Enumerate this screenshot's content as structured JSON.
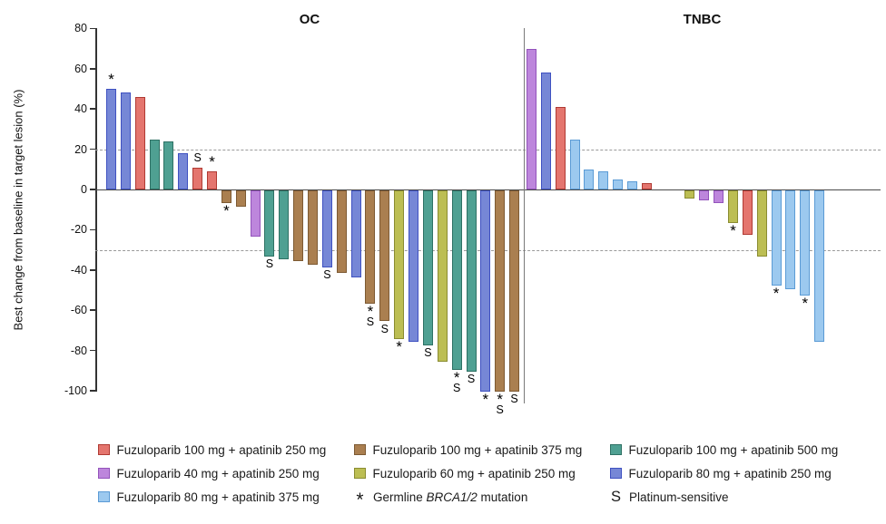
{
  "chart_data": {
    "type": "bar",
    "subtype": "waterfall",
    "ylabel": "Best change from baseline in target lesion (%)",
    "ylim": [
      -100,
      80
    ],
    "yticks": [
      80,
      60,
      40,
      20,
      0,
      -20,
      -40,
      -60,
      -80,
      -100
    ],
    "reference_lines": [
      20,
      -30
    ],
    "grid": "off",
    "marker_meanings": {
      "*": "Germline BRCA1/2 mutation",
      "S": "Platinum-sensitive"
    },
    "colors": {
      "red": {
        "fill": "#e4756e",
        "stroke": "#b03a33"
      },
      "brown": {
        "fill": "#aa7f50",
        "stroke": "#7d5a33"
      },
      "teal": {
        "fill": "#4fa092",
        "stroke": "#2e7164"
      },
      "purple": {
        "fill": "#bd86dc",
        "stroke": "#9353bb"
      },
      "olive": {
        "fill": "#bcbe53",
        "stroke": "#8a8c31"
      },
      "blue": {
        "fill": "#7687d6",
        "stroke": "#3f51c1"
      },
      "lightblue": {
        "fill": "#9cc9ef",
        "stroke": "#5b9bd5"
      }
    },
    "groups": [
      {
        "title": "OC",
        "bars": [
          {
            "v": 50,
            "c": "blue",
            "m": "*"
          },
          {
            "v": 48,
            "c": "blue"
          },
          {
            "v": 46,
            "c": "red"
          },
          {
            "v": 25,
            "c": "teal"
          },
          {
            "v": 24,
            "c": "teal"
          },
          {
            "v": 18,
            "c": "blue"
          },
          {
            "v": 11,
            "c": "red",
            "m": "S"
          },
          {
            "v": 9,
            "c": "red",
            "m": "*"
          },
          {
            "v": -6,
            "c": "brown",
            "m": "*"
          },
          {
            "v": -8,
            "c": "brown"
          },
          {
            "v": -23,
            "c": "purple"
          },
          {
            "v": -33,
            "c": "teal",
            "m": "S"
          },
          {
            "v": -34,
            "c": "teal"
          },
          {
            "v": -35,
            "c": "brown"
          },
          {
            "v": -37,
            "c": "brown"
          },
          {
            "v": -38,
            "c": "blue",
            "m": "S"
          },
          {
            "v": -41,
            "c": "brown"
          },
          {
            "v": -43,
            "c": "blue"
          },
          {
            "v": -56,
            "c": "brown",
            "m": "*S"
          },
          {
            "v": -65,
            "c": "brown",
            "m": "S"
          },
          {
            "v": -74,
            "c": "olive",
            "m": "*"
          },
          {
            "v": -75,
            "c": "blue"
          },
          {
            "v": -77,
            "c": "teal",
            "m": "S"
          },
          {
            "v": -85,
            "c": "olive"
          },
          {
            "v": -89,
            "c": "teal",
            "m": "*S"
          },
          {
            "v": -90,
            "c": "teal",
            "m": "S"
          },
          {
            "v": -100,
            "c": "blue",
            "m": "*"
          },
          {
            "v": -100,
            "c": "brown",
            "m": "*S"
          },
          {
            "v": -100,
            "c": "brown",
            "m": "S"
          }
        ]
      },
      {
        "title": "TNBC",
        "bars": [
          {
            "v": 70,
            "c": "purple"
          },
          {
            "v": 58,
            "c": "blue"
          },
          {
            "v": 41,
            "c": "red"
          },
          {
            "v": 25,
            "c": "lightblue"
          },
          {
            "v": 10,
            "c": "lightblue"
          },
          {
            "v": 9,
            "c": "lightblue"
          },
          {
            "v": 5,
            "c": "lightblue"
          },
          {
            "v": 4,
            "c": "lightblue"
          },
          {
            "v": 3,
            "c": "red"
          },
          {
            "v": 0
          },
          {
            "v": 0
          },
          {
            "v": -4,
            "c": "olive"
          },
          {
            "v": -5,
            "c": "purple"
          },
          {
            "v": -6,
            "c": "purple"
          },
          {
            "v": -16,
            "c": "olive",
            "m": "*"
          },
          {
            "v": -22,
            "c": "red"
          },
          {
            "v": -33,
            "c": "olive"
          },
          {
            "v": -47,
            "c": "lightblue",
            "m": "*"
          },
          {
            "v": -49,
            "c": "lightblue"
          },
          {
            "v": -52,
            "c": "lightblue",
            "m": "*"
          },
          {
            "v": -75,
            "c": "lightblue"
          }
        ]
      }
    ]
  },
  "legend": {
    "items": [
      {
        "type": "swatch",
        "color": "red",
        "label": "Fuzuloparib 100 mg + apatinib 250 mg"
      },
      {
        "type": "swatch",
        "color": "brown",
        "label": "Fuzuloparib 100 mg + apatinib 375 mg"
      },
      {
        "type": "swatch",
        "color": "teal",
        "label": "Fuzuloparib 100 mg + apatinib 500 mg"
      },
      {
        "type": "swatch",
        "color": "purple",
        "label": "Fuzuloparib 40 mg + apatinib 250 mg"
      },
      {
        "type": "swatch",
        "color": "olive",
        "label": "Fuzuloparib 60 mg + apatinib 250 mg"
      },
      {
        "type": "swatch",
        "color": "blue",
        "label": "Fuzuloparib 80 mg + apatinib 250 mg"
      },
      {
        "type": "swatch",
        "color": "lightblue",
        "label": "Fuzuloparib 80 mg + apatinib 375 mg"
      },
      {
        "type": "symbol",
        "symbol": "*",
        "label_parts": [
          "Germline ",
          "BRCA1/2",
          " mutation"
        ]
      },
      {
        "type": "symbol",
        "symbol": "S",
        "label": "Platinum-sensitive"
      }
    ]
  }
}
